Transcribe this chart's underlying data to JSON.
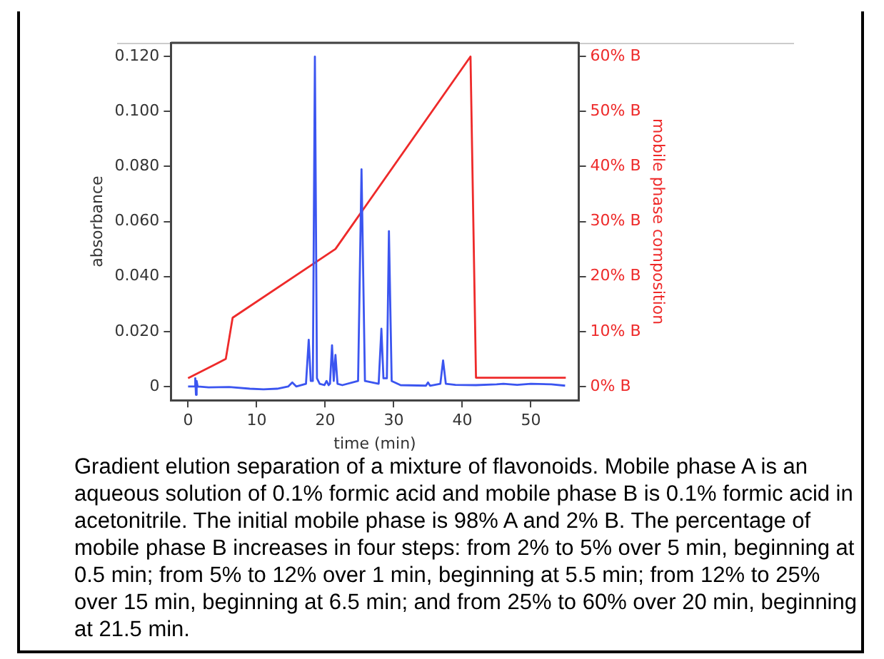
{
  "chart_data": {
    "type": "line",
    "xlabel": "time (min)",
    "ylabel": "absorbance",
    "y2label": "mobile phase composition",
    "xlim": [
      -2.5,
      57
    ],
    "xticks": [
      0,
      10,
      20,
      30,
      40,
      50
    ],
    "ylim": [
      -0.005,
      0.125
    ],
    "yticks": [
      0,
      {
        "value": 0.02,
        "label": "0.020"
      },
      {
        "value": 0.04,
        "label": "0.040"
      },
      {
        "value": 0.06,
        "label": "0.060"
      },
      {
        "value": 0.08,
        "label": "0.080"
      },
      {
        "value": 0.1,
        "label": "0.100"
      },
      {
        "value": 0.12,
        "label": "0.120"
      }
    ],
    "y2lim": [
      -2.5,
      62.5
    ],
    "y2ticks": [
      {
        "value": 0,
        "label": "0% B"
      },
      {
        "value": 10,
        "label": "10% B"
      },
      {
        "value": 20,
        "label": "20% B"
      },
      {
        "value": 30,
        "label": "30% B"
      },
      {
        "value": 40,
        "label": "40% B"
      },
      {
        "value": 50,
        "label": "50% B"
      },
      {
        "value": 60,
        "label": "60% B"
      }
    ],
    "grid": false,
    "legend": false,
    "marker": "none",
    "line_style": "solid",
    "series": [
      {
        "color": "#3b55f0",
        "x": [
          0,
          0.9,
          1.05,
          1.15,
          1.25,
          1.4,
          3,
          6,
          9,
          11,
          13,
          14.6,
          15.2,
          15.8,
          17.2,
          17.6,
          17.9,
          18.2,
          18.5,
          18.8,
          19.2,
          19.9,
          20.2,
          20.5,
          20.7,
          21.0,
          21.25,
          21.5,
          21.8,
          22.5,
          24.8,
          25.3,
          25.8,
          27.8,
          28.2,
          28.5,
          28.8,
          29.0,
          29.3,
          29.7,
          31,
          34.7,
          35.0,
          35.3,
          36.8,
          37.2,
          37.6,
          39,
          42,
          45,
          46,
          48,
          50,
          53,
          55
        ],
        "values": [
          0,
          0,
          0.003,
          -0.003,
          0.002,
          0,
          -0.0003,
          -0.0002,
          -0.0008,
          -0.001,
          -0.0008,
          0,
          0.0015,
          0,
          0.001,
          0.017,
          0.002,
          0.002,
          0.12,
          0.003,
          0.001,
          0.0005,
          0.002,
          0.0005,
          0.001,
          0.015,
          0.002,
          0.0115,
          0.001,
          0.0005,
          0.002,
          0.079,
          0.002,
          0.001,
          0.021,
          0.003,
          0.003,
          0.003,
          0.0565,
          0.002,
          0.0005,
          0.0003,
          0.0015,
          0.0003,
          0.001,
          0.0095,
          0.001,
          0.0006,
          0.0005,
          0.0008,
          0.001,
          0.0006,
          0.001,
          0.0008,
          0.0003
        ]
      },
      {
        "color": "#ee2a2a",
        "axis": "y2",
        "x": [
          0,
          5.5,
          6.5,
          21.5,
          41.2,
          42.0,
          55.1
        ],
        "values": [
          1.5,
          5,
          12.5,
          25,
          60,
          1.6,
          1.6
        ]
      }
    ],
    "annotations": [
      "Gradient elution separation of a mixture of flavonoids. Mobile phase A is an aqueous solution of 0.1% formic acid and mobile phase B is 0.1% formic acid in acetonitrile. The initial mobile phase is 98% A and 2% B. The percentage of mobile phase B increases in four steps: from 2% to 5% over 5 min, beginning at 0.5 min; from 5% to 12% over 1 min, beginning at 5.5 min; from 12% to 25% over 15 min, beginning at 6.5 min; and from 25% to 60% over 20 min, beginning at 21.5 min."
    ]
  }
}
